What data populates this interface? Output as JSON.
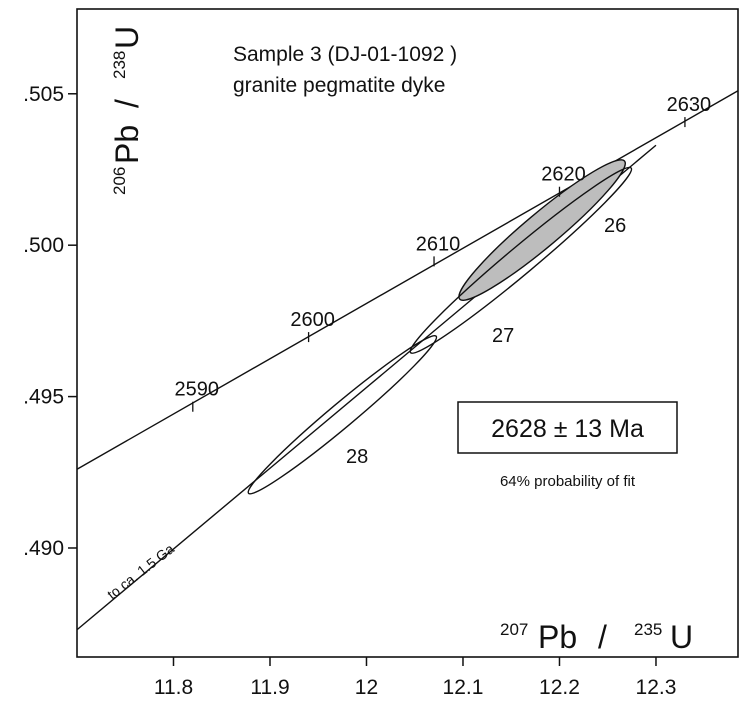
{
  "chart_data": {
    "type": "scatter",
    "title_lines": [
      "Sample 3 (DJ-01-1092 )",
      "granite pegmatite dyke"
    ],
    "xlabel": {
      "sup1": "207",
      "el1": "Pb",
      "slash": "/",
      "sup2": "235",
      "el2": "U"
    },
    "ylabel": {
      "sup1": "206",
      "el1": "Pb",
      "slash": "/",
      "sup2": "238",
      "el2": "U"
    },
    "xlim": [
      11.7,
      12.385
    ],
    "ylim": [
      0.4864,
      0.5078
    ],
    "x_ticks": [
      {
        "value": 11.8,
        "label": "11.8"
      },
      {
        "value": 11.9,
        "label": "11.9"
      },
      {
        "value": 12.0,
        "label": "12"
      },
      {
        "value": 12.1,
        "label": "12.1"
      },
      {
        "value": 12.2,
        "label": "12.2"
      },
      {
        "value": 12.3,
        "label": "12.3"
      }
    ],
    "y_ticks": [
      {
        "value": 0.505,
        "label": ".505"
      },
      {
        "value": 0.5,
        "label": ".500"
      },
      {
        "value": 0.495,
        "label": ".495"
      },
      {
        "value": 0.49,
        "label": ".490"
      }
    ],
    "concordia_ages": [
      {
        "age": "2590",
        "x": 11.82,
        "y": 0.4945
      },
      {
        "age": "2600",
        "x": 11.94,
        "y": 0.4968
      },
      {
        "age": "2610",
        "x": 12.07,
        "y": 0.4993
      },
      {
        "age": "2620",
        "x": 12.2,
        "y": 0.5016
      },
      {
        "age": "2630",
        "x": 12.33,
        "y": 0.5039
      }
    ],
    "concordia_line": {
      "x": [
        11.7,
        12.385
      ],
      "y": 0.4926,
      "y_end": 0.5051
    },
    "discordia_line": {
      "x": [
        11.7,
        12.3
      ],
      "y": [
        0.4873,
        0.5033
      ],
      "label": "to ca. 1.5 Ga"
    },
    "ellipses": [
      {
        "name": "26",
        "cx": 12.182,
        "cy": 0.5005,
        "semi_major": 0.00355,
        "semi_minor": 0.00056,
        "filled": true
      },
      {
        "name": "27",
        "cx": 12.16,
        "cy": 0.4995,
        "semi_major": 0.00475,
        "semi_minor": 0.00045,
        "filled": false
      },
      {
        "name": "28",
        "cx": 11.975,
        "cy": 0.4944,
        "semi_major": 0.00404,
        "semi_minor": 0.0004,
        "filled": false
      }
    ],
    "result_box": {
      "age": "2628 ± 13 Ma",
      "note": "64% probability of fit"
    },
    "grid": false,
    "colors": {
      "ink": "#111111",
      "ellipse_fill": "#bdbdbd",
      "background": "#ffffff"
    }
  }
}
